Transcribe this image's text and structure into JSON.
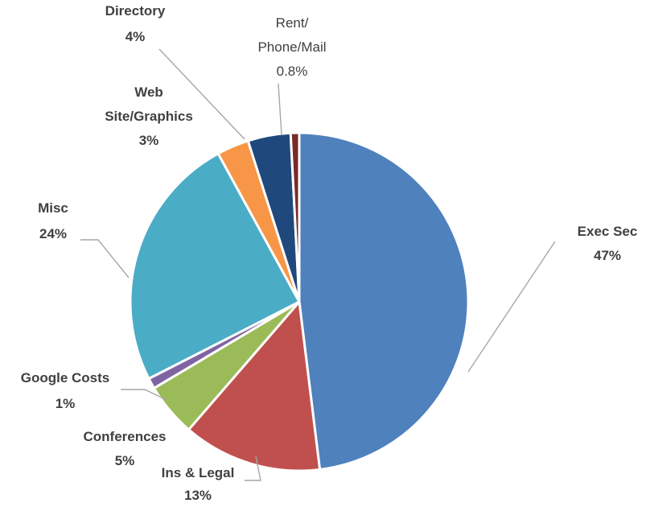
{
  "chart_data": {
    "type": "pie",
    "title": "",
    "start": "12 o'clock, clockwise",
    "slices": [
      {
        "name": "Exec Sec",
        "value": 47,
        "label": "47%",
        "color": "#4f81bd"
      },
      {
        "name": "Ins & Legal",
        "value": 13,
        "label": "13%",
        "color": "#c0504d"
      },
      {
        "name": "Conferences",
        "value": 5,
        "label": "5%",
        "color": "#9bbb59"
      },
      {
        "name": "Google Costs",
        "value": 1,
        "label": "1%",
        "color": "#8064a2"
      },
      {
        "name": "Misc",
        "value": 24,
        "label": "24%",
        "color": "#4bacc6"
      },
      {
        "name": "Web Site/Graphics",
        "value": 3,
        "label": "3%",
        "color": "#f79646"
      },
      {
        "name": "Directory",
        "value": 4,
        "label": "4%",
        "color": "#1f497d"
      },
      {
        "name": "Rent/ Phone/Mail",
        "value": 0.8,
        "label": "0.8%",
        "color": "#772c2a"
      }
    ],
    "data_labels": "outside with leader lines",
    "legend": "none"
  }
}
